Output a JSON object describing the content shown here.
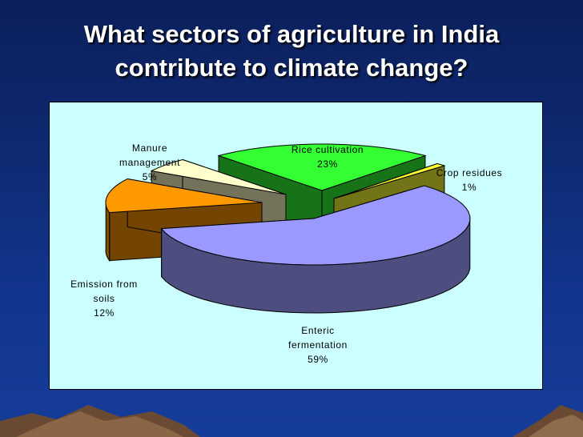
{
  "slide": {
    "title_line1": "What sectors of agriculture in India",
    "title_line2": "contribute to climate change?"
  },
  "colors": {
    "background": "#0e2a72",
    "chart_background": "#ccffff",
    "rice": "#33ff33",
    "crop": "#ffff33",
    "enteric": "#9999ff",
    "soils": "#ff9900",
    "manure": "#ffffcc"
  },
  "chart_data": {
    "type": "pie",
    "style": "3d-exploded",
    "title": "",
    "categories": [
      "Rice cultivation",
      "Crop residues",
      "Enteric fermentation",
      "Emission from soils",
      "Manure management"
    ],
    "values": [
      23,
      1,
      59,
      12,
      5
    ],
    "labels": [
      {
        "line1": "Rice cultivation",
        "line2": "23%"
      },
      {
        "line1": "Crop residues",
        "line2": "1%"
      },
      {
        "line1": "Enteric",
        "line2": "fermentation",
        "line3": "59%"
      },
      {
        "line1": "Emission from",
        "line2": "soils",
        "line3": "12%"
      },
      {
        "line1": "Manure",
        "line2": "management",
        "line3": "5%"
      }
    ]
  }
}
